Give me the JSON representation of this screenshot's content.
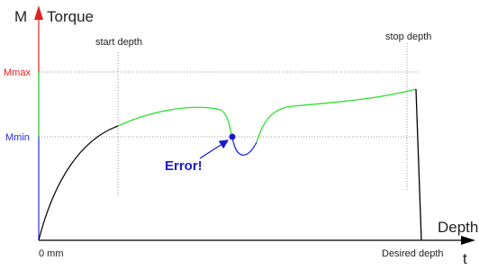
{
  "axis": {
    "y_symbol": "M",
    "y_label": "Torque",
    "x_label": "Depth",
    "x_symbol": "t"
  },
  "levels": {
    "max": "Mmax",
    "min": "Mmin"
  },
  "markers": {
    "start": "start depth",
    "stop": "stop depth",
    "origin": "0 mm",
    "end": "Desired depth"
  },
  "error": "Error!"
}
